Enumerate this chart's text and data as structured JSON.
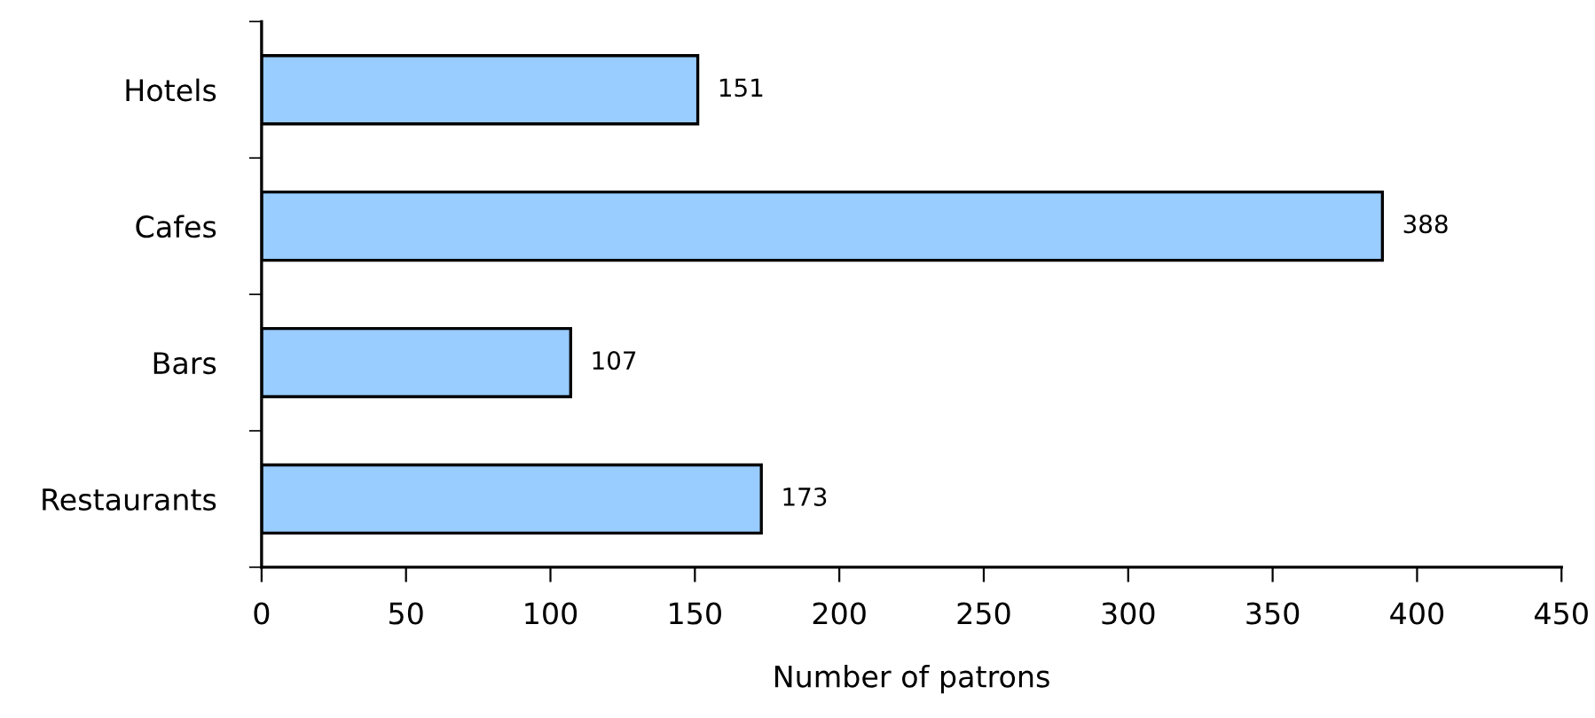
{
  "chart_data": {
    "type": "bar",
    "orientation": "horizontal",
    "xlabel": "Number of patrons",
    "categories": [
      "Hotels",
      "Cafes",
      "Bars",
      "Restaurants"
    ],
    "values": [
      151,
      388,
      107,
      173
    ],
    "color": "#99ccff",
    "xlim": [
      0,
      450
    ],
    "xticks": [
      0,
      50,
      100,
      150,
      200,
      250,
      300,
      350,
      400,
      450
    ],
    "grid": false,
    "legend": false,
    "data_labels": true
  }
}
